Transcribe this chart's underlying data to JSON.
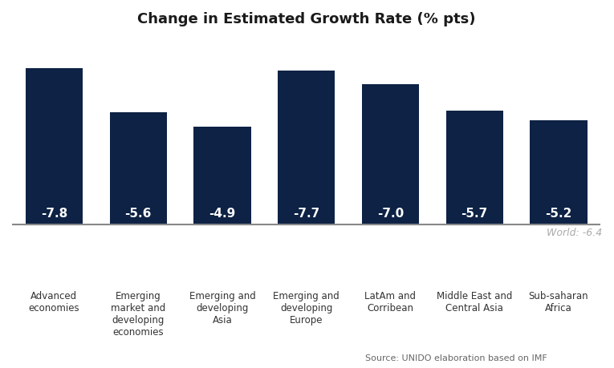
{
  "title": "Change in Estimated Growth Rate (% pts)",
  "categories": [
    "Advanced\neconomies",
    "Emerging\nmarket and\ndeveloping\neconomies",
    "Emerging and\ndeveloping\nAsia",
    "Emerging and\ndeveloping\nEurope",
    "LatAm and\nCorribean",
    "Middle East and\nCentral Asia",
    "Sub-saharan\nAfrica"
  ],
  "values": [
    -7.8,
    -5.6,
    -4.9,
    -7.7,
    -7.0,
    -5.7,
    -5.2
  ],
  "bar_color": "#0D2244",
  "bar_width": 0.68,
  "ylim": [
    -3.0,
    9.5
  ],
  "world_line": -6.4,
  "world_label": "World: -6.4",
  "source_text": "Source: ",
  "source_link1": "UNIDO",
  "source_mid": " elaboration based on ",
  "source_link2": "IMF",
  "zero_line_color": "#888888",
  "value_label_color": "#ffffff",
  "value_label_fontsize": 11,
  "title_fontsize": 13,
  "tick_label_fontsize": 8.5,
  "world_label_color": "#aaaaaa",
  "background_color": "#ffffff"
}
